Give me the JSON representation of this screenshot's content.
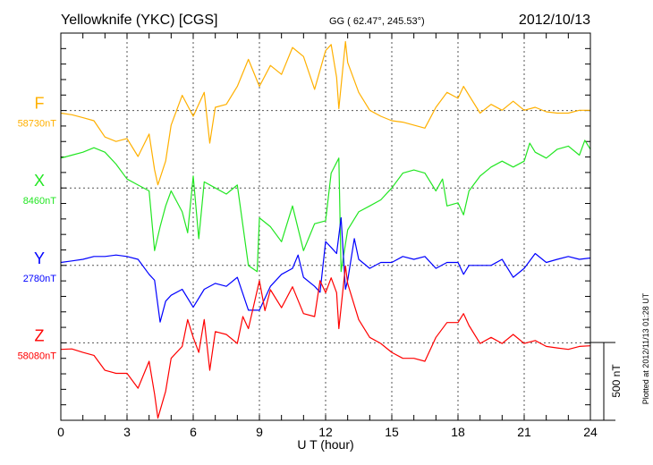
{
  "header": {
    "station": "Yellowknife (YKC)  [CGS]",
    "coords": "GG ( 62.47°, 245.53°)",
    "date": "2012/10/13"
  },
  "footer": {
    "plotted": "Plotted at 2012/11/13 01:28 UT"
  },
  "chart_data": {
    "type": "line",
    "title": "Yellowknife (YKC)  [CGS]",
    "xlabel": "U T (hour)",
    "xlim": [
      0,
      24
    ],
    "xticks": [
      "0",
      "3",
      "6",
      "9",
      "12",
      "15",
      "18",
      "21",
      "24"
    ],
    "scale_bar_label": "500 nT",
    "scale_bar_nT": 500,
    "grid": "dotted, every 3 hours and at each component baseline",
    "series": [
      {
        "name": "F",
        "baseline_label": "58730nT",
        "baseline_nT": 58730,
        "color": "#ffb000",
        "t": [
          0,
          0.5,
          1,
          1.5,
          2,
          2.5,
          3,
          3.5,
          4,
          4.25,
          4.4,
          4.75,
          5,
          5.5,
          6,
          6.5,
          6.75,
          7,
          7.5,
          8,
          8.5,
          9,
          9.5,
          10,
          10.5,
          11,
          11.5,
          12,
          12.25,
          12.5,
          12.6,
          12.9,
          13,
          13.5,
          14,
          14.5,
          15,
          15.5,
          16,
          16.5,
          17,
          17.5,
          18,
          18.25,
          18.5,
          19,
          19.5,
          20,
          20.5,
          21,
          21.5,
          22,
          22.5,
          23,
          23.5,
          24
        ],
        "v": [
          -17,
          -27,
          -46,
          -66,
          -171,
          -200,
          -181,
          -297,
          -152,
          -383,
          -480,
          -326,
          -94,
          98,
          -37,
          117,
          -210,
          21,
          40,
          156,
          330,
          156,
          291,
          233,
          407,
          349,
          137,
          387,
          426,
          214,
          12,
          445,
          310,
          117,
          2,
          -37,
          -66,
          -75,
          -94,
          -114,
          21,
          117,
          79,
          156,
          98,
          -17,
          40,
          2,
          60,
          2,
          21,
          -8,
          -17,
          -17,
          2,
          2
        ]
      },
      {
        "name": "X",
        "baseline_label": "8460nT",
        "baseline_nT": 8460,
        "color": "#22e622",
        "t": [
          0,
          0.5,
          1,
          1.5,
          2,
          2.5,
          3,
          3.5,
          4,
          4.25,
          4.5,
          4.75,
          5,
          5.5,
          5.75,
          6,
          6.25,
          6.5,
          7,
          7.5,
          8,
          8.5,
          8.9,
          9,
          9.5,
          10,
          10.5,
          11,
          11.5,
          12,
          12.25,
          12.6,
          12.7,
          13,
          13.5,
          14,
          14.5,
          15,
          15.5,
          16,
          16.5,
          17,
          17.3,
          17.5,
          18,
          18.25,
          18.5,
          19,
          19.5,
          20,
          20.5,
          21,
          21.25,
          21.5,
          22,
          22.5,
          23,
          23.5,
          23.75,
          24
        ],
        "v": [
          193,
          212,
          231,
          260,
          231,
          154,
          58,
          19,
          -19,
          -405,
          -250,
          -116,
          -19,
          -154,
          -289,
          77,
          -328,
          39,
          0,
          -39,
          19,
          -501,
          -540,
          -193,
          -250,
          -347,
          -116,
          -405,
          -231,
          -212,
          96,
          193,
          -540,
          -270,
          -154,
          -116,
          -77,
          0,
          96,
          116,
          96,
          -19,
          58,
          -116,
          -96,
          -173,
          -19,
          77,
          135,
          173,
          135,
          173,
          289,
          231,
          193,
          250,
          270,
          212,
          308,
          250
        ]
      },
      {
        "name": "Y",
        "baseline_label": "2780nT",
        "baseline_nT": 2780,
        "color": "#0000ff",
        "t": [
          0,
          0.5,
          1,
          1.5,
          2,
          2.5,
          3,
          3.5,
          4,
          4.25,
          4.5,
          4.75,
          5,
          5.5,
          6,
          6.5,
          7,
          7.5,
          8,
          8.5,
          9,
          9.5,
          10,
          10.5,
          10.75,
          11,
          11.5,
          11.75,
          12,
          12.25,
          12.5,
          12.7,
          12.9,
          13,
          13.3,
          13.5,
          14,
          14.5,
          15,
          15.5,
          16,
          16.5,
          17,
          17.5,
          18,
          18.25,
          18.5,
          19,
          19.5,
          20,
          20.5,
          21,
          21.5,
          22,
          22.5,
          23,
          23.5,
          24
        ],
        "v": [
          19,
          29,
          39,
          58,
          58,
          67,
          58,
          39,
          -58,
          -96,
          -366,
          -231,
          -193,
          -154,
          -270,
          -154,
          -116,
          -135,
          -77,
          -289,
          -289,
          -135,
          -58,
          -19,
          67,
          -77,
          -135,
          -173,
          154,
          116,
          77,
          308,
          -154,
          -96,
          173,
          39,
          -19,
          19,
          19,
          58,
          39,
          58,
          -19,
          19,
          19,
          -58,
          0,
          0,
          0,
          39,
          -77,
          -19,
          77,
          19,
          39,
          58,
          39,
          48
        ]
      },
      {
        "name": "Z",
        "baseline_label": "58080nT",
        "baseline_nT": 58080,
        "color": "#ff0000",
        "t": [
          0,
          0.5,
          1,
          1.5,
          2,
          2.5,
          3,
          3.5,
          4,
          4.25,
          4.4,
          4.75,
          5,
          5.5,
          5.75,
          6,
          6.25,
          6.5,
          6.75,
          7,
          7.5,
          8,
          8.25,
          8.5,
          9,
          9.25,
          9.5,
          10,
          10.5,
          11,
          11.5,
          11.75,
          12,
          12.25,
          12.5,
          12.6,
          12.9,
          13,
          13.5,
          14,
          14.5,
          15,
          15.5,
          16,
          16.5,
          17,
          17.5,
          18,
          18.25,
          18.5,
          19,
          19.5,
          20,
          20.5,
          21,
          21.5,
          22,
          22.5,
          23,
          23.5,
          24
        ],
        "v": [
          -42,
          -39,
          -62,
          -81,
          -177,
          -197,
          -197,
          -293,
          -119,
          -331,
          -486,
          -312,
          -100,
          -23,
          150,
          35,
          -62,
          150,
          -177,
          73,
          54,
          -4,
          170,
          92,
          401,
          208,
          343,
          227,
          362,
          189,
          170,
          401,
          324,
          420,
          324,
          92,
          497,
          382,
          150,
          35,
          -4,
          -62,
          -100,
          -100,
          -119,
          35,
          131,
          131,
          189,
          112,
          -4,
          35,
          -4,
          54,
          -4,
          15,
          -23,
          -33,
          -42,
          -23,
          -19
        ]
      }
    ]
  }
}
